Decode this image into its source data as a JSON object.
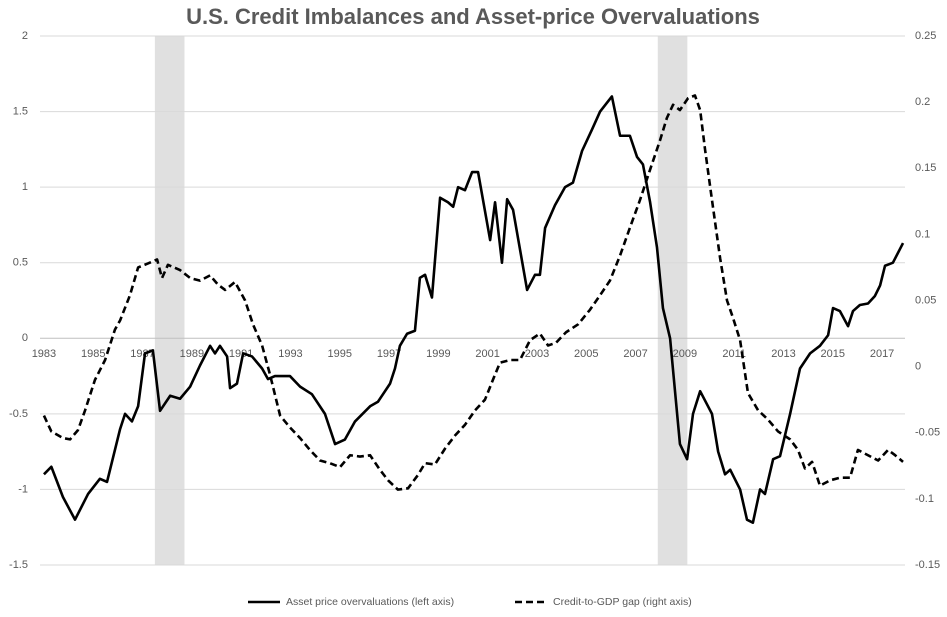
{
  "chart_data": {
    "type": "line",
    "title": "U.S. Credit Imbalances and Asset-price Overvaluations",
    "xlim": [
      1982.84,
      2017.93
    ],
    "xticks": [
      1983,
      1985,
      1987,
      1989,
      1991,
      1993,
      1995,
      1997,
      1999,
      2001,
      2003,
      2005,
      2007,
      2009,
      2011,
      2013,
      2015,
      2017
    ],
    "ylim": [
      -1.5,
      2
    ],
    "yticks": [
      -1.5,
      -1,
      -0.5,
      0,
      0.5,
      1,
      1.5,
      2
    ],
    "y2lim": [
      -0.15,
      0.25
    ],
    "y2ticks": [
      -0.15,
      -0.1,
      -0.05,
      0,
      0.05,
      0.1,
      0.15,
      0.2,
      0.25
    ],
    "grid": true,
    "legend": "bottom",
    "shaded_periods": [
      [
        1987.5,
        1988.7
      ],
      [
        2007.9,
        2009.1
      ]
    ],
    "shade_color": "#e0e0e0",
    "series": [
      {
        "name": "Asset price overvaluations (left axis)",
        "color": "#000000",
        "dash": "solid",
        "axis": "y",
        "x": [
          1983.0,
          1983.3,
          1983.77,
          1984.26,
          1984.79,
          1985.27,
          1985.56,
          1986.09,
          1986.29,
          1986.57,
          1986.82,
          1987.1,
          1987.42,
          1987.71,
          1988.12,
          1988.52,
          1988.93,
          1989.33,
          1989.74,
          1989.94,
          1990.14,
          1990.43,
          1990.55,
          1990.83,
          1991.08,
          1991.44,
          1991.85,
          1992.09,
          1992.37,
          1992.98,
          1993.39,
          1993.87,
          1994.4,
          1994.81,
          1995.21,
          1995.62,
          1996.23,
          1996.55,
          1997.04,
          1997.24,
          1997.44,
          1997.73,
          1998.05,
          1998.25,
          1998.46,
          1998.74,
          1999.07,
          1999.39,
          1999.6,
          1999.8,
          2000.08,
          2000.37,
          2000.61,
          2001.1,
          2001.3,
          2001.58,
          2001.79,
          2002.03,
          2002.6,
          2002.92,
          2003.12,
          2003.33,
          2003.73,
          2004.14,
          2004.46,
          2004.83,
          2005.23,
          2005.56,
          2006.04,
          2006.37,
          2006.77,
          2007.06,
          2007.3,
          2007.59,
          2007.87,
          2008.11,
          2008.4,
          2008.8,
          2009.09,
          2009.33,
          2009.62,
          2009.94,
          2010.1,
          2010.35,
          2010.63,
          2010.84,
          2011.24,
          2011.52,
          2011.76,
          2012.05,
          2012.25,
          2012.58,
          2012.86,
          2013.27,
          2013.67,
          2014.08,
          2014.48,
          2014.81,
          2015.01,
          2015.29,
          2015.62,
          2015.82,
          2016.1,
          2016.43,
          2016.71,
          2016.92,
          2017.12,
          2017.44,
          2017.85
        ],
        "values": [
          -0.9,
          -0.85,
          -1.05,
          -1.2,
          -1.03,
          -0.93,
          -0.95,
          -0.6,
          -0.5,
          -0.55,
          -0.45,
          -0.1,
          -0.08,
          -0.48,
          -0.38,
          -0.4,
          -0.32,
          -0.18,
          -0.05,
          -0.1,
          -0.05,
          -0.12,
          -0.33,
          -0.3,
          -0.1,
          -0.12,
          -0.2,
          -0.27,
          -0.25,
          -0.25,
          -0.32,
          -0.37,
          -0.5,
          -0.7,
          -0.67,
          -0.55,
          -0.45,
          -0.42,
          -0.3,
          -0.2,
          -0.05,
          0.03,
          0.05,
          0.4,
          0.42,
          0.27,
          0.93,
          0.9,
          0.87,
          1.0,
          0.98,
          1.1,
          1.1,
          0.65,
          0.9,
          0.5,
          0.92,
          0.85,
          0.32,
          0.42,
          0.42,
          0.73,
          0.88,
          1.0,
          1.03,
          1.24,
          1.38,
          1.5,
          1.6,
          1.34,
          1.34,
          1.2,
          1.15,
          0.9,
          0.6,
          0.2,
          0.0,
          -0.7,
          -0.8,
          -0.5,
          -0.35,
          -0.45,
          -0.5,
          -0.75,
          -0.9,
          -0.87,
          -1.0,
          -1.2,
          -1.22,
          -1.0,
          -1.03,
          -0.8,
          -0.78,
          -0.5,
          -0.2,
          -0.1,
          -0.05,
          0.02,
          0.2,
          0.18,
          0.08,
          0.18,
          0.22,
          0.23,
          0.28,
          0.35,
          0.48,
          0.5,
          0.63
        ]
      },
      {
        "name": "Credit-to-GDP gap (right axis)",
        "color": "#000000",
        "dash": "dashed",
        "axis": "y2",
        "x": [
          1983.0,
          1983.3,
          1983.77,
          1984.06,
          1984.38,
          1984.67,
          1985.07,
          1985.48,
          1985.88,
          1986.09,
          1986.49,
          1986.82,
          1987.22,
          1987.59,
          1987.79,
          1988.03,
          1988.52,
          1988.93,
          1989.33,
          1989.74,
          1990.06,
          1990.35,
          1990.75,
          1991.16,
          1991.48,
          1991.85,
          1992.17,
          1992.58,
          1992.98,
          1993.39,
          1993.79,
          1994.2,
          1994.6,
          1995.01,
          1995.42,
          1995.82,
          1996.23,
          1996.63,
          1996.96,
          1997.36,
          1997.77,
          1998.17,
          1998.46,
          1998.86,
          1999.27,
          1999.68,
          2000.08,
          2000.49,
          2000.89,
          2001.3,
          2001.5,
          2001.91,
          2002.31,
          2002.72,
          2003.12,
          2003.45,
          2003.77,
          2004.18,
          2004.67,
          2005.15,
          2005.56,
          2005.96,
          2006.37,
          2006.77,
          2007.18,
          2007.59,
          2007.99,
          2008.27,
          2008.52,
          2008.8,
          2009.13,
          2009.41,
          2009.62,
          2009.82,
          2010.1,
          2010.43,
          2010.71,
          2010.95,
          2011.24,
          2011.56,
          2011.97,
          2012.37,
          2012.78,
          2013.27,
          2013.59,
          2013.87,
          2014.16,
          2014.48,
          2014.89,
          2015.29,
          2015.7,
          2016.02,
          2016.43,
          2016.84,
          2017.24,
          2017.53,
          2017.85
        ],
        "values": [
          -0.037,
          -0.049,
          -0.054,
          -0.055,
          -0.048,
          -0.033,
          -0.01,
          0.005,
          0.028,
          0.035,
          0.054,
          0.075,
          0.078,
          0.081,
          0.067,
          0.077,
          0.073,
          0.067,
          0.065,
          0.069,
          0.062,
          0.058,
          0.064,
          0.05,
          0.032,
          0.016,
          -0.006,
          -0.037,
          -0.046,
          -0.054,
          -0.063,
          -0.071,
          -0.073,
          -0.076,
          -0.067,
          -0.068,
          -0.067,
          -0.078,
          -0.086,
          -0.093,
          -0.092,
          -0.082,
          -0.073,
          -0.074,
          -0.062,
          -0.052,
          -0.044,
          -0.033,
          -0.025,
          -0.006,
          0.003,
          0.005,
          0.005,
          0.02,
          0.025,
          0.016,
          0.018,
          0.026,
          0.032,
          0.043,
          0.054,
          0.065,
          0.084,
          0.105,
          0.126,
          0.149,
          0.171,
          0.188,
          0.198,
          0.194,
          0.203,
          0.205,
          0.194,
          0.164,
          0.126,
          0.082,
          0.05,
          0.037,
          0.02,
          -0.02,
          -0.033,
          -0.04,
          -0.049,
          -0.055,
          -0.063,
          -0.077,
          -0.072,
          -0.09,
          -0.086,
          -0.084,
          -0.084,
          -0.063,
          -0.067,
          -0.071,
          -0.063,
          -0.067,
          -0.072
        ]
      }
    ]
  }
}
